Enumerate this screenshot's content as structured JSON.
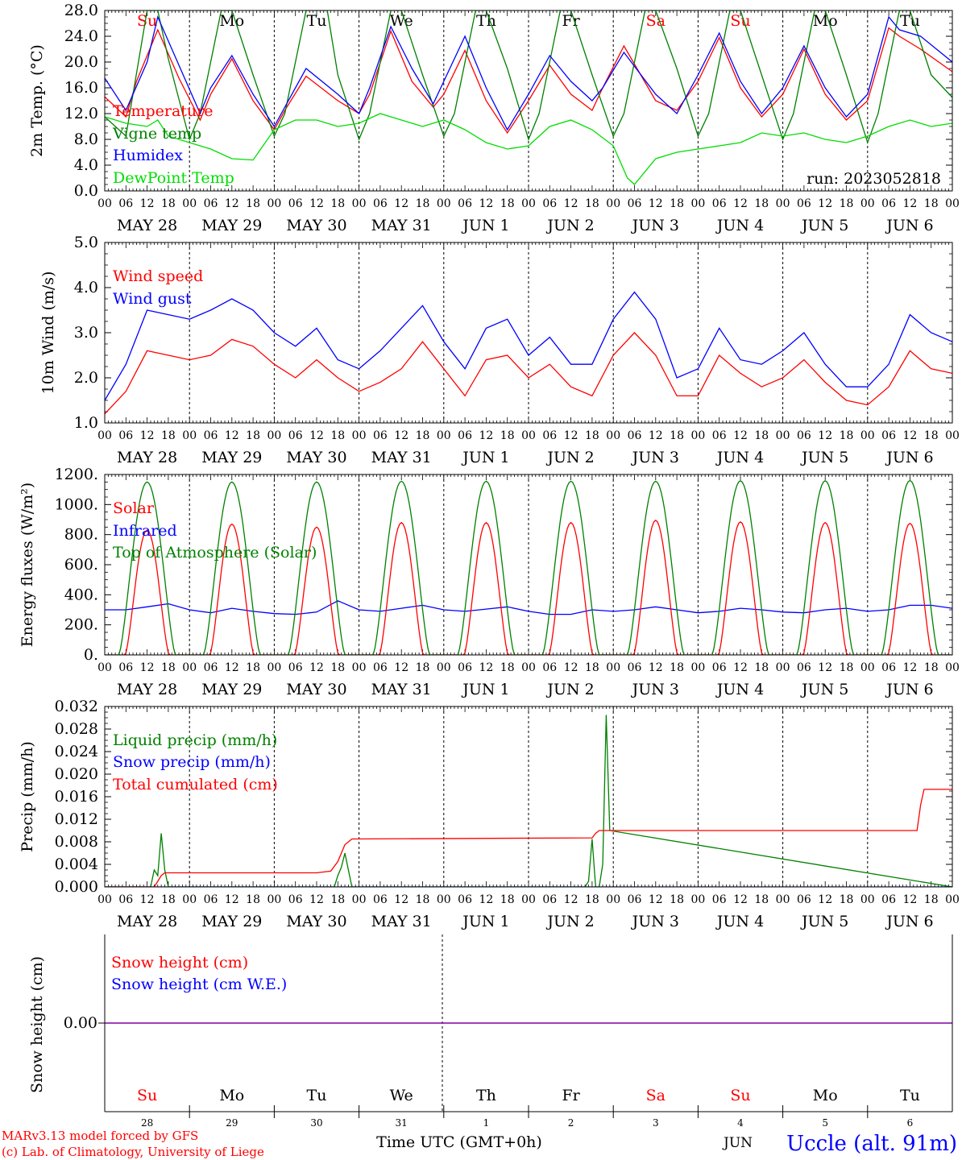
{
  "day_letters": [
    "Su",
    "Mo",
    "Tu",
    "We",
    "Th",
    "Fr",
    "Sa",
    "Su",
    "Mo",
    "Tu"
  ],
  "weekend_flags": [
    true,
    false,
    false,
    false,
    false,
    false,
    true,
    true,
    false,
    false
  ],
  "hour_labels": [
    "00",
    "06",
    "12",
    "18"
  ],
  "final_hour_label": "00",
  "date_labels": [
    "MAY 28",
    "MAY 29",
    "MAY 30",
    "MAY 31",
    "JUN  1",
    "JUN  2",
    "JUN  3",
    "JUN  4",
    "JUN  5",
    "JUN  6"
  ],
  "bottom_day_numbers": [
    "28",
    "29",
    "30",
    "31",
    "1",
    "2",
    "3",
    "4",
    "5",
    "6"
  ],
  "footer": {
    "credit_line1": "MARv3.13 model forced by GFS",
    "credit_line2": "(c) Lab. of Climatology, University of Liege",
    "time_axis_label": "Time UTC (GMT+0h)",
    "month_label": "JUN",
    "station_label": "Uccle (alt. 91m)"
  },
  "colors": {
    "red": "#ff0000",
    "green": "#008000",
    "blue": "#0000ff",
    "lightgreen": "#00dd00",
    "purple": "#8000a0",
    "weekend": "#ff0000"
  },
  "chart_data": [
    {
      "type": "line",
      "ylabel": "2m Temp. (°C)",
      "ylim": [
        0,
        28
      ],
      "yticks": [
        "0.0",
        "4.0",
        "8.0",
        "12.0",
        "16.0",
        "20.0",
        "24.0",
        "28.0"
      ],
      "run_label": "run: 2023052818",
      "x_unit": "hours since 2023-05-28 00 UTC",
      "series": [
        {
          "name": "Temperature",
          "color": "#ff0000",
          "x": [
            0,
            6,
            9,
            15,
            21,
            27,
            30,
            36,
            42,
            48,
            51,
            57,
            66,
            72,
            75,
            81,
            87,
            93,
            96,
            102,
            108,
            114,
            120,
            126,
            132,
            138,
            141,
            147,
            156,
            162,
            168,
            174,
            180,
            186,
            192,
            198,
            204,
            210,
            216,
            222,
            225,
            231,
            240
          ],
          "y": [
            14.6,
            11.5,
            17.0,
            25.0,
            17.5,
            11.0,
            15.0,
            20.5,
            14.0,
            9.5,
            12.5,
            17.8,
            14.0,
            12.0,
            15.0,
            24.8,
            17.0,
            13.0,
            15.0,
            21.8,
            14.0,
            9.0,
            14.0,
            19.5,
            15.0,
            12.5,
            16.0,
            22.5,
            14.0,
            12.5,
            17.0,
            23.8,
            16.0,
            11.5,
            15.0,
            22.0,
            15.0,
            11.0,
            14.0,
            25.3,
            24.0,
            22.0,
            18.5
          ]
        },
        {
          "name": "Vigne temp",
          "color": "#008000",
          "x": [
            0,
            6,
            12,
            15,
            18,
            24,
            27,
            33,
            36,
            42,
            48,
            51,
            57,
            63,
            66,
            72,
            75,
            81,
            84,
            90,
            96,
            99,
            105,
            108,
            114,
            120,
            123,
            129,
            132,
            138,
            144,
            147,
            153,
            156,
            162,
            168,
            171,
            177,
            180,
            186,
            192,
            195,
            201,
            204,
            210,
            216,
            219,
            225,
            228,
            234,
            240
          ],
          "y": [
            11.5,
            8.5,
            28,
            28,
            20.5,
            8.0,
            12,
            28,
            28,
            18,
            8.5,
            12,
            28,
            28,
            18,
            8.0,
            12,
            28,
            28,
            18,
            8.5,
            12,
            28,
            28,
            19,
            8.0,
            12,
            28,
            28,
            18,
            8.5,
            12,
            28,
            28,
            19,
            8.5,
            12,
            28,
            28,
            18,
            8.0,
            12,
            28,
            28,
            18,
            7.5,
            12,
            28,
            28,
            18,
            14.5
          ]
        },
        {
          "name": "Humidex",
          "color": "#0000ff",
          "x": [
            0,
            6,
            12,
            15,
            21,
            27,
            30,
            36,
            42,
            48,
            51,
            57,
            66,
            72,
            75,
            81,
            87,
            93,
            96,
            102,
            108,
            114,
            120,
            126,
            132,
            138,
            141,
            147,
            156,
            162,
            168,
            174,
            180,
            186,
            192,
            198,
            204,
            210,
            216,
            222,
            225,
            231,
            240
          ],
          "y": [
            17.5,
            12.5,
            20.0,
            27.0,
            19.5,
            12.0,
            16.0,
            21.0,
            15.0,
            10.0,
            13.0,
            19.0,
            15.0,
            12.0,
            16.0,
            25.5,
            19.0,
            13.5,
            17.0,
            24.0,
            16.0,
            9.5,
            15.0,
            21.0,
            17.0,
            14.0,
            16.0,
            21.5,
            15.0,
            12.0,
            18.0,
            24.5,
            17.0,
            12.0,
            16.0,
            22.5,
            16.0,
            11.5,
            15.0,
            27.0,
            25.0,
            24.0,
            20.0
          ]
        },
        {
          "name": "DewPoint Temp",
          "color": "#00dd00",
          "x": [
            0,
            6,
            12,
            15,
            18,
            24,
            30,
            36,
            42,
            48,
            54,
            60,
            66,
            72,
            78,
            84,
            90,
            96,
            102,
            108,
            114,
            120,
            126,
            132,
            138,
            144,
            148,
            150,
            156,
            162,
            168,
            174,
            180,
            186,
            192,
            198,
            204,
            210,
            216,
            222,
            228,
            234,
            240
          ],
          "y": [
            11.5,
            10.5,
            10.0,
            11.0,
            8.5,
            7.5,
            6.5,
            5.0,
            4.8,
            9.5,
            11.0,
            11.0,
            10.0,
            10.5,
            12.0,
            11.0,
            10.0,
            11.0,
            9.5,
            7.5,
            6.5,
            7.0,
            10.0,
            11.0,
            9.5,
            7.0,
            2.0,
            1.0,
            5.0,
            6.0,
            6.5,
            7.0,
            7.5,
            9.0,
            8.5,
            9.0,
            8.0,
            7.5,
            8.5,
            10.0,
            11.0,
            10.0,
            10.5
          ]
        }
      ]
    },
    {
      "type": "line",
      "ylabel": "10m Wind (m/s)",
      "ylim": [
        1,
        5
      ],
      "yticks": [
        "1.0",
        "2.0",
        "3.0",
        "4.0",
        "5.0"
      ],
      "x_unit": "hours since 2023-05-28 00 UTC",
      "series": [
        {
          "name": "Wind speed",
          "color": "#ff0000",
          "x": [
            0,
            6,
            12,
            18,
            24,
            30,
            36,
            42,
            48,
            54,
            60,
            66,
            72,
            78,
            84,
            90,
            96,
            102,
            108,
            114,
            120,
            126,
            132,
            138,
            144,
            150,
            156,
            162,
            168,
            174,
            180,
            186,
            192,
            198,
            204,
            210,
            216,
            222,
            228,
            234,
            240
          ],
          "y": [
            1.2,
            1.7,
            2.6,
            2.5,
            2.4,
            2.5,
            2.85,
            2.7,
            2.3,
            2.0,
            2.4,
            2.0,
            1.7,
            1.9,
            2.2,
            2.8,
            2.2,
            1.6,
            2.4,
            2.5,
            2.0,
            2.3,
            1.8,
            1.6,
            2.5,
            3.0,
            2.5,
            1.6,
            1.6,
            2.5,
            2.1,
            1.8,
            2.0,
            2.4,
            1.9,
            1.5,
            1.4,
            1.8,
            2.6,
            2.2,
            2.1
          ]
        },
        {
          "name": "Wind gust",
          "color": "#0000ff",
          "x": [
            0,
            6,
            12,
            18,
            24,
            30,
            36,
            42,
            48,
            54,
            60,
            66,
            72,
            78,
            84,
            90,
            96,
            102,
            108,
            114,
            120,
            126,
            132,
            138,
            144,
            150,
            156,
            162,
            168,
            174,
            180,
            186,
            192,
            198,
            204,
            210,
            216,
            222,
            228,
            234,
            240
          ],
          "y": [
            1.5,
            2.3,
            3.5,
            3.4,
            3.3,
            3.5,
            3.75,
            3.5,
            3.0,
            2.7,
            3.1,
            2.4,
            2.2,
            2.6,
            3.1,
            3.6,
            2.8,
            2.2,
            3.1,
            3.3,
            2.5,
            2.9,
            2.3,
            2.3,
            3.3,
            3.9,
            3.3,
            2.0,
            2.2,
            3.1,
            2.4,
            2.3,
            2.6,
            3.0,
            2.3,
            1.8,
            1.8,
            2.3,
            3.4,
            3.0,
            2.8
          ]
        }
      ]
    },
    {
      "type": "line",
      "ylabel": "Energy fluxes (W/m²)",
      "ylim": [
        0,
        1200
      ],
      "yticks": [
        "0.",
        "200.",
        "400.",
        "600.",
        "800.",
        "1000.",
        "1200."
      ],
      "x_unit": "hours since 2023-05-28 00 UTC",
      "daily_peaks": {
        "Solar": [
          830,
          870,
          850,
          880,
          880,
          880,
          895,
          885,
          880,
          875
        ],
        "Top of Atmosphere (Solar)": [
          1150,
          1150,
          1150,
          1155,
          1155,
          1155,
          1155,
          1158,
          1158,
          1160
        ]
      },
      "series": [
        {
          "name": "Infrared",
          "color": "#0000ff",
          "x": [
            0,
            6,
            12,
            18,
            24,
            30,
            36,
            42,
            48,
            54,
            60,
            66,
            72,
            78,
            84,
            90,
            96,
            102,
            108,
            114,
            120,
            126,
            132,
            138,
            144,
            150,
            156,
            162,
            168,
            174,
            180,
            186,
            192,
            198,
            204,
            210,
            216,
            222,
            228,
            234,
            240
          ],
          "y": [
            300,
            300,
            320,
            340,
            300,
            280,
            310,
            290,
            275,
            270,
            285,
            360,
            300,
            290,
            310,
            330,
            300,
            290,
            305,
            320,
            290,
            270,
            270,
            300,
            290,
            300,
            320,
            300,
            280,
            290,
            310,
            300,
            285,
            280,
            300,
            310,
            290,
            300,
            330,
            330,
            310
          ]
        }
      ]
    },
    {
      "type": "line",
      "ylabel": "Precip (mm/h)",
      "ylim": [
        0,
        0.032
      ],
      "yticks": [
        "0.000",
        "0.004",
        "0.008",
        "0.012",
        "0.016",
        "0.020",
        "0.024",
        "0.028",
        "0.032"
      ],
      "x_unit": "hours since 2023-05-28 00 UTC",
      "series": [
        {
          "name": "Liquid precip (mm/h)",
          "color": "#008000",
          "x": [
            0,
            13,
            14,
            15,
            16,
            17,
            18,
            65,
            66,
            67,
            68,
            69,
            70,
            136,
            137,
            138,
            139,
            140,
            141,
            142,
            143,
            240
          ],
          "y": [
            0,
            0,
            0.003,
            0.002,
            0.0095,
            0.003,
            0,
            0,
            0.002,
            0.0035,
            0.006,
            0.003,
            0,
            0,
            0.001,
            0.0085,
            0,
            0,
            0.004,
            0.0305,
            0.01,
            0
          ]
        },
        {
          "name": "Snow precip (mm/h)",
          "color": "#0000ff",
          "x": [
            0,
            240
          ],
          "y": [
            0,
            0
          ]
        },
        {
          "name": "Total cumulated (cm)",
          "color": "#ff0000",
          "x": [
            0,
            14,
            15,
            16,
            17,
            60,
            64,
            66,
            68,
            70,
            138,
            139,
            140,
            230,
            231,
            232,
            240
          ],
          "y": [
            0,
            0,
            0.001,
            0.002,
            0.0025,
            0.0025,
            0.0028,
            0.0045,
            0.0075,
            0.0085,
            0.0087,
            0.0095,
            0.01,
            0.01,
            0.0145,
            0.0173,
            0.0173
          ]
        }
      ]
    },
    {
      "type": "line",
      "ylabel": "Snow height (cm)",
      "ytick": "0.00",
      "series": [
        {
          "name": "Snow height (cm)",
          "color": "#ff0000",
          "x": [
            0,
            240
          ],
          "y": [
            0,
            0
          ]
        },
        {
          "name": "Snow height (cm W.E.)",
          "color": "#0000ff",
          "x": [
            0,
            240
          ],
          "y": [
            0,
            0
          ]
        }
      ]
    }
  ]
}
